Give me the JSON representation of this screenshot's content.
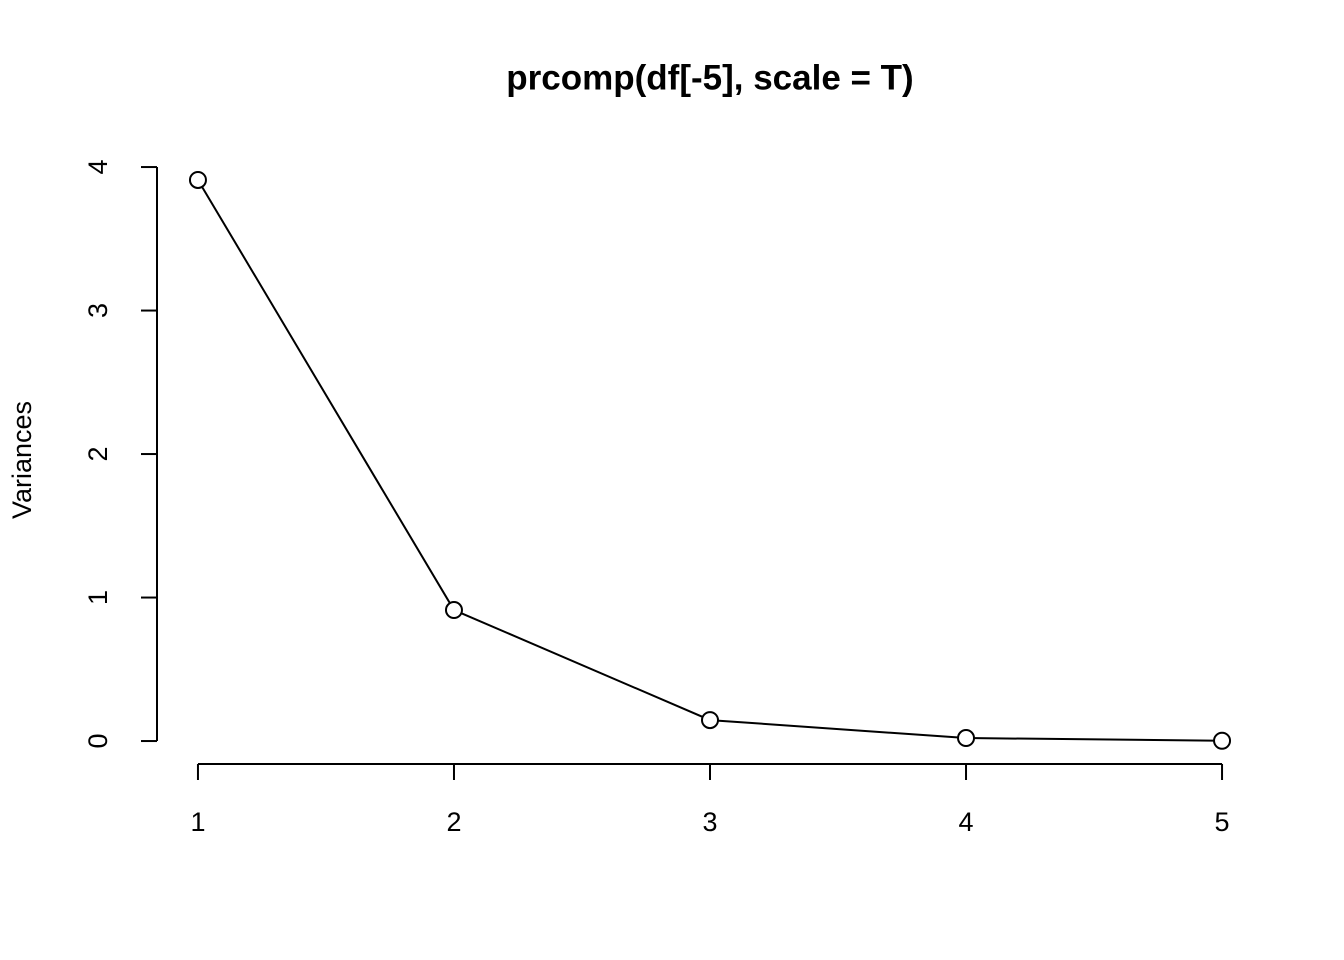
{
  "chart_data": {
    "type": "line",
    "title": "prcomp(df[-5], scale = T)",
    "y_label": "Variances",
    "x": [
      1,
      2,
      3,
      4,
      5
    ],
    "values": [
      3.91,
      0.913,
      0.146,
      0.021,
      0.002
    ],
    "color": "#000000",
    "xlim": [
      0.84,
      5.16
    ],
    "ylim": [
      -0.16,
      4.07
    ],
    "xticks": [
      1,
      2,
      3,
      4,
      5
    ],
    "yticks": [
      0,
      1,
      2,
      3,
      4
    ],
    "grid": false
  }
}
